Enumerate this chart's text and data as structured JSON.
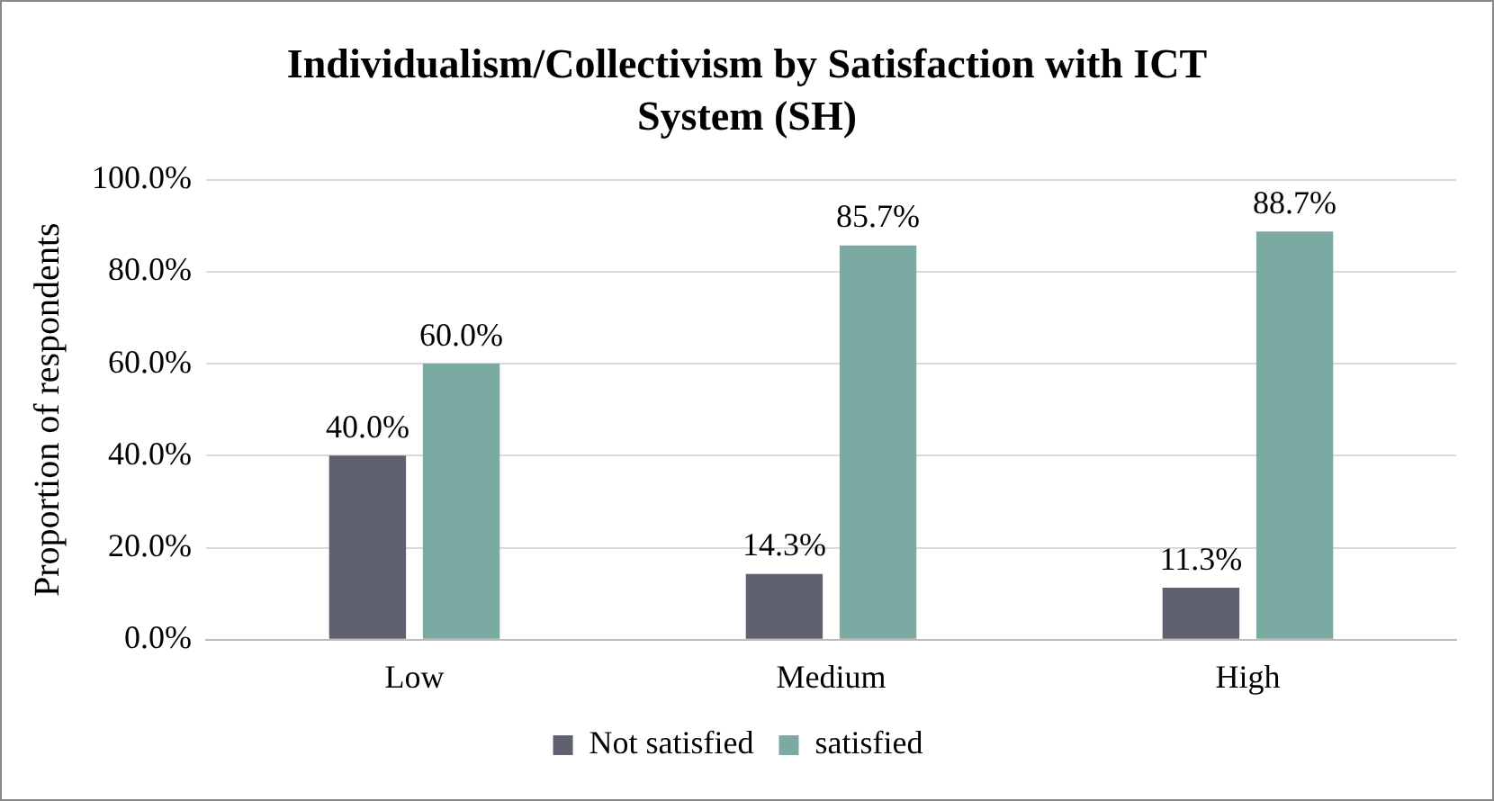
{
  "chart_data": {
    "type": "bar",
    "title": "Individualism/Collectivism by Satisfaction with ICT System (SH)",
    "ylabel": "Proportion of respondents",
    "categories": [
      "Low",
      "Medium",
      "High"
    ],
    "series": [
      {
        "name": "Not satisfied",
        "color": "#5f6070",
        "values": [
          40.0,
          14.3,
          11.3
        ],
        "value_labels": [
          "40.0%",
          "14.3%",
          "11.3%"
        ]
      },
      {
        "name": "satisfied",
        "color": "#7aaaa2",
        "values": [
          60.0,
          85.7,
          88.7
        ],
        "value_labels": [
          "60.0%",
          "85.7%",
          "88.7%"
        ]
      }
    ],
    "ylim": [
      0,
      100
    ],
    "yticks": [
      {
        "value": 0,
        "label": "0.0%"
      },
      {
        "value": 20,
        "label": "20.0%"
      },
      {
        "value": 40,
        "label": "40.0%"
      },
      {
        "value": 60,
        "label": "60.0%"
      },
      {
        "value": 80,
        "label": "80.0%"
      },
      {
        "value": 100,
        "label": "100.0%"
      }
    ],
    "grid": "y",
    "legend": "bottom"
  }
}
